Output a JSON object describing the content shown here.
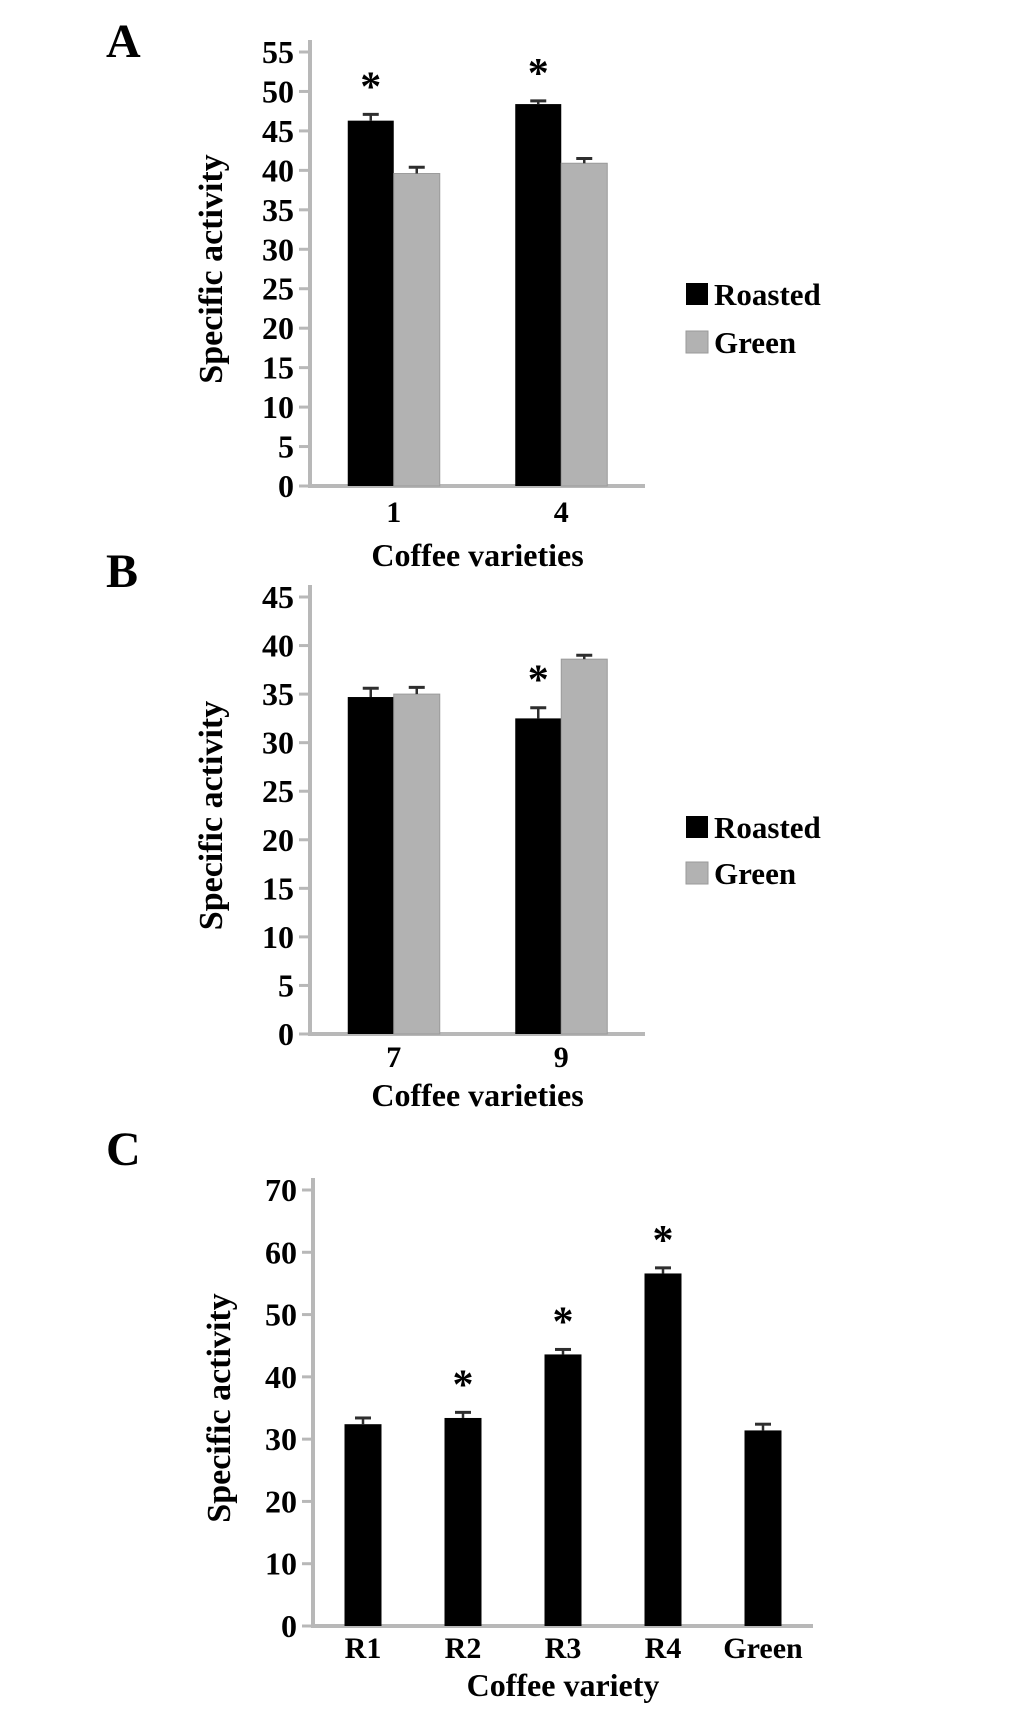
{
  "figure": {
    "background": "#ffffff",
    "significance_marker": "*",
    "axis_color": "#b8b8b8",
    "error_bar_color": "#2e2e2e"
  },
  "chart_data": [
    {
      "panel": "A",
      "type": "bar",
      "title": "",
      "xlabel": "Coffee varieties",
      "ylabel": "Specific activity",
      "categories": [
        "1",
        "4"
      ],
      "series": [
        {
          "name": "Roasted",
          "color": "#000000",
          "values": [
            46.3,
            48.4
          ],
          "errors": [
            0.8,
            0.4
          ],
          "significant": [
            true,
            true
          ]
        },
        {
          "name": "Green",
          "color": "#b2b2b2",
          "values": [
            39.6,
            40.9
          ],
          "errors": [
            0.8,
            0.6
          ],
          "significant": [
            false,
            false
          ]
        }
      ],
      "ylim": [
        0,
        55
      ],
      "ytick_step": 5,
      "yticks": [
        0,
        5,
        10,
        15,
        20,
        25,
        30,
        35,
        40,
        45,
        50,
        55
      ],
      "legend": {
        "position": "right",
        "entries": [
          "Roasted",
          "Green"
        ]
      },
      "grid": false
    },
    {
      "panel": "B",
      "type": "bar",
      "title": "",
      "xlabel": "Coffee varieties",
      "ylabel": "Specific activity",
      "categories": [
        "7",
        "9"
      ],
      "series": [
        {
          "name": "Roasted",
          "color": "#000000",
          "values": [
            34.7,
            32.5
          ],
          "errors": [
            0.9,
            1.1
          ],
          "significant": [
            false,
            true
          ]
        },
        {
          "name": "Green",
          "color": "#b2b2b2",
          "values": [
            35.0,
            38.6
          ],
          "errors": [
            0.7,
            0.4
          ],
          "significant": [
            false,
            false
          ]
        }
      ],
      "ylim": [
        0,
        45
      ],
      "ytick_step": 5,
      "yticks": [
        0,
        5,
        10,
        15,
        20,
        25,
        30,
        35,
        40,
        45
      ],
      "legend": {
        "position": "right",
        "entries": [
          "Roasted",
          "Green"
        ]
      },
      "grid": false
    },
    {
      "panel": "C",
      "type": "bar",
      "title": "",
      "xlabel": "Coffee variety",
      "ylabel": "Specific activity",
      "categories": [
        "R1",
        "R2",
        "R3",
        "R4",
        "Green"
      ],
      "series": [
        {
          "name": "Roasted",
          "color": "#000000",
          "values": [
            32.4,
            33.4,
            43.6,
            56.6,
            31.4
          ],
          "errors": [
            1.0,
            0.9,
            0.8,
            0.9,
            1.0
          ],
          "significant": [
            false,
            true,
            true,
            true,
            false
          ]
        }
      ],
      "ylim": [
        0,
        70
      ],
      "ytick_step": 10,
      "yticks": [
        0,
        10,
        20,
        30,
        40,
        50,
        60,
        70
      ],
      "legend": null,
      "grid": false
    }
  ]
}
